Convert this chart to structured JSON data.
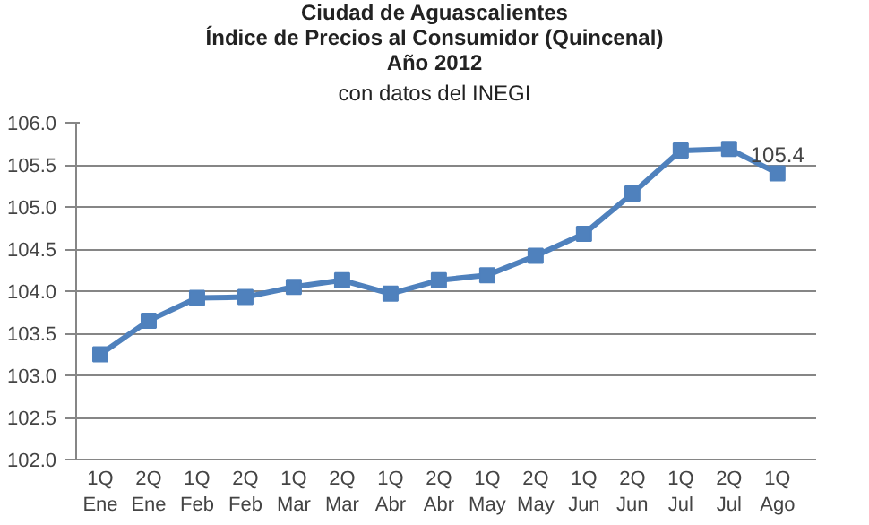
{
  "chart_data": {
    "type": "line",
    "title": "Ciudad de Aguascalientes\nÍndice de Precios al Consumidor (Quincenal)\nAño 2012",
    "subtitle": "con datos del INEGI",
    "categories": [
      "1Q\nEne",
      "2Q\nEne",
      "1Q\nFeb",
      "2Q\nFeb",
      "1Q\nMar",
      "2Q\nMar",
      "1Q\nAbr",
      "2Q\nAbr",
      "1Q\nMay",
      "2Q\nMay",
      "1Q\nJun",
      "2Q\nJun",
      "1Q\nJul",
      "2Q\nJul",
      "1Q\nAgo"
    ],
    "series": [
      {
        "color": "#4f81bd",
        "values": [
          103.25,
          103.65,
          103.92,
          103.93,
          104.05,
          104.13,
          103.97,
          104.13,
          104.19,
          104.42,
          104.68,
          105.16,
          105.67,
          105.69,
          105.4
        ],
        "value_labels": [
          null,
          null,
          null,
          null,
          null,
          null,
          null,
          null,
          null,
          null,
          null,
          null,
          null,
          null,
          "105.4"
        ]
      }
    ],
    "ylim": [
      102.0,
      106.0
    ],
    "yticks": [
      {
        "value": 102,
        "label": "102.0"
      },
      {
        "value": 102.5,
        "label": "102.5"
      },
      {
        "value": 103,
        "label": "103.0"
      },
      {
        "value": 103.5,
        "label": "103.5"
      },
      {
        "value": 104,
        "label": "104.0"
      },
      {
        "value": 104.5,
        "label": "104.5"
      },
      {
        "value": 105,
        "label": "105.0"
      },
      {
        "value": 105.5,
        "label": "105.5"
      },
      {
        "value": 106,
        "label": "106.0"
      }
    ],
    "grid": "y",
    "marker": "square",
    "line_style": "solid"
  }
}
